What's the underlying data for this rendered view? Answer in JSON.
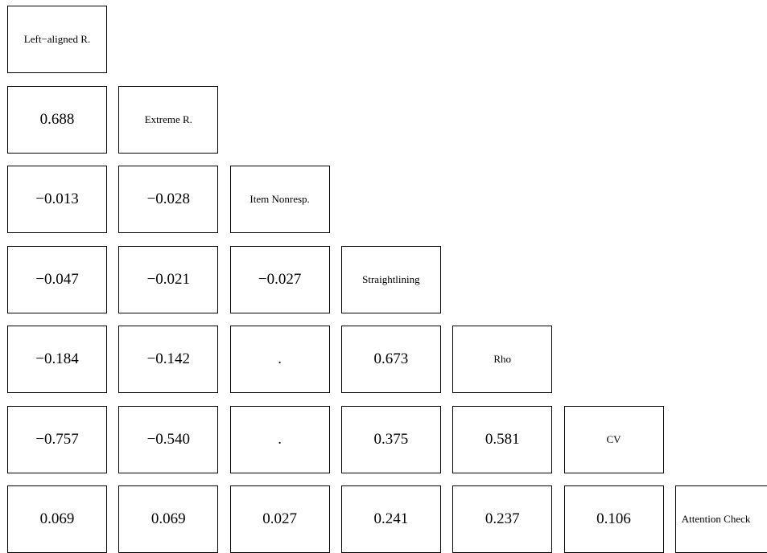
{
  "chart_data": {
    "type": "table",
    "variables": [
      "Left−aligned R.",
      "Extreme R.",
      "Item Nonresp.",
      "Straightlining",
      "Rho",
      "CV",
      "Attention Check"
    ],
    "lower_triangle": [
      [],
      [
        "0.688"
      ],
      [
        "−0.013",
        "−0.028"
      ],
      [
        "−0.047",
        "−0.021",
        "−0.027"
      ],
      [
        "−0.184",
        "−0.142",
        ".",
        "0.673"
      ],
      [
        "−0.757",
        "−0.540",
        ".",
        "0.375",
        "0.581"
      ],
      [
        "0.069",
        "0.069",
        "0.027",
        "0.241",
        "0.237",
        "0.106"
      ]
    ]
  }
}
